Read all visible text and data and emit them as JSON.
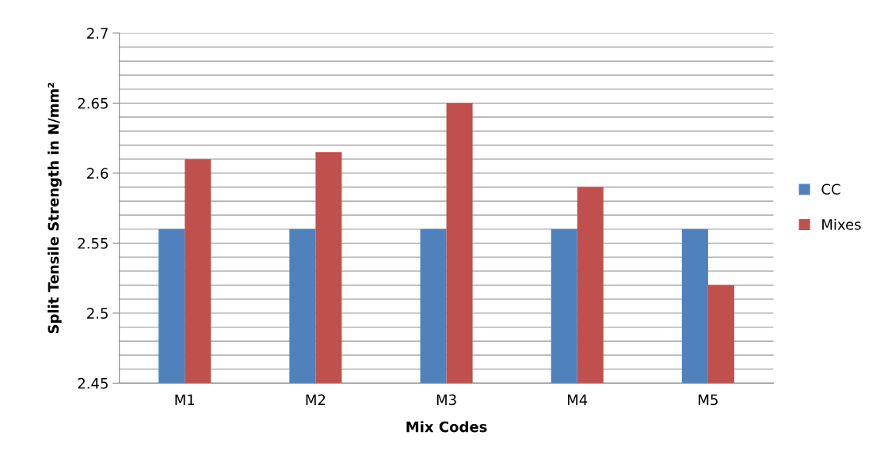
{
  "chart_data": {
    "type": "bar",
    "xlabel": "Mix Codes",
    "ylabel": "Split Tensile Strength in N/mm²",
    "categories": [
      "M1",
      "M2",
      "M3",
      "M4",
      "M5"
    ],
    "series": [
      {
        "name": "CC",
        "color": "#4f81bd",
        "values": [
          2.56,
          2.56,
          2.56,
          2.56,
          2.56
        ]
      },
      {
        "name": "Mixes",
        "color": "#c0504d",
        "values": [
          2.61,
          2.615,
          2.65,
          2.59,
          2.52
        ]
      }
    ],
    "ylim": [
      2.45,
      2.7
    ],
    "yticks": [
      "2.45",
      {
        "value": 2.46,
        "label": null
      },
      {
        "value": 2.47,
        "label": null
      },
      {
        "value": 2.48,
        "label": null
      },
      {
        "value": 2.49,
        "label": null
      },
      {
        "value": 2.5,
        "label": "2.5"
      },
      {
        "value": 2.51,
        "label": null
      },
      {
        "value": 2.52,
        "label": null
      },
      {
        "value": 2.53,
        "label": null
      },
      {
        "value": 2.54,
        "label": null
      },
      {
        "value": 2.55,
        "label": "2.55"
      },
      {
        "value": 2.56,
        "label": null
      },
      {
        "value": 2.57,
        "label": null
      },
      {
        "value": 2.58,
        "label": null
      },
      {
        "value": 2.59,
        "label": null
      },
      {
        "value": 2.6,
        "label": "2.6"
      },
      {
        "value": 2.61,
        "label": null
      },
      {
        "value": 2.62,
        "label": null
      },
      {
        "value": 2.63,
        "label": null
      },
      {
        "value": 2.64,
        "label": null
      },
      {
        "value": 2.65,
        "label": "2.65"
      },
      {
        "value": 2.66,
        "label": null
      },
      {
        "value": 2.67,
        "label": null
      },
      {
        "value": 2.68,
        "label": null
      },
      {
        "value": 2.69,
        "label": null
      },
      {
        "value": 2.7,
        "label": "2.7"
      }
    ],
    "grid": "y",
    "legend": "right"
  }
}
